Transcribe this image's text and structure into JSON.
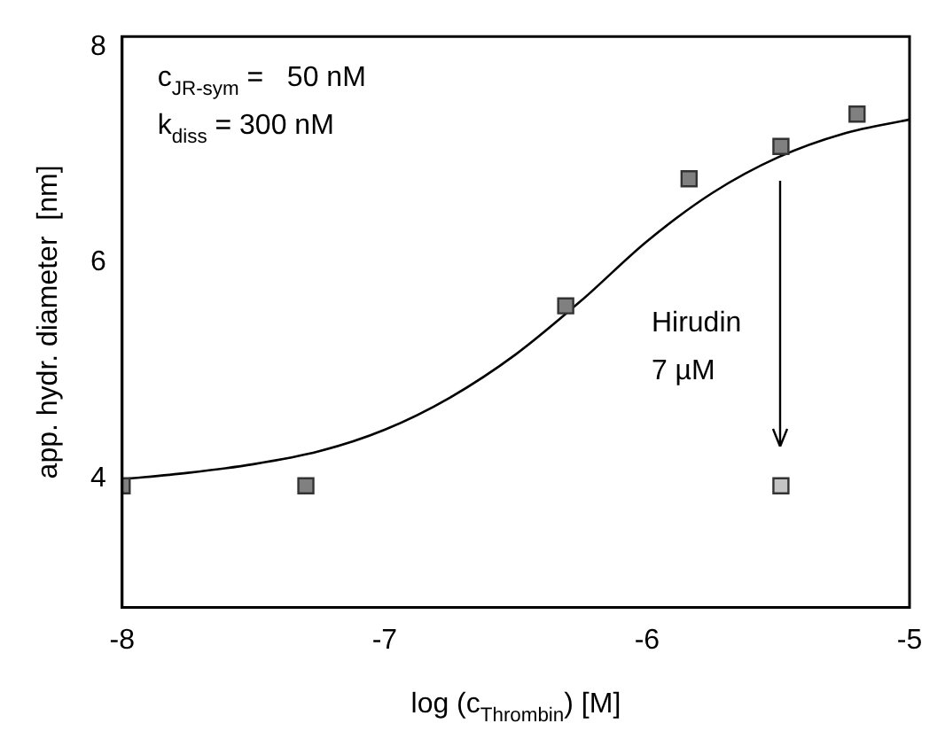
{
  "chart_data": {
    "type": "scatter",
    "xlabel": "log (c$_{Thrombin}$) [M]",
    "ylabel": "app. hydr. diameter  [nm]",
    "xlim": [
      -8,
      -5
    ],
    "xticks": [
      -8,
      -7,
      -6,
      -5
    ],
    "ylim": [
      2.8,
      8.1
    ],
    "yticks": [
      4,
      6,
      8
    ],
    "marker": "square",
    "legend": false,
    "series": [
      {
        "color": "#808080",
        "x": [
          -8,
          -7.3,
          -6.31,
          -5.84,
          -5.49,
          -5.2
        ],
        "values": [
          3.93,
          3.93,
          5.6,
          6.78,
          7.08,
          7.38
        ]
      },
      {
        "color": "#c4c4c4",
        "x": [
          -5.49
        ],
        "values": [
          3.93
        ]
      },
      {
        "type": "line",
        "color": "#000000",
        "marker": "none",
        "line_style": "solid",
        "x": [
          -8,
          -7.75,
          -7.5,
          -7.25,
          -7,
          -6.75,
          -6.5,
          -6.25,
          -6,
          -5.75,
          -5.5,
          -5.25,
          -5
        ],
        "values": [
          3.99,
          4.05,
          4.13,
          4.25,
          4.45,
          4.75,
          5.15,
          5.65,
          6.2,
          6.65,
          6.98,
          7.2,
          7.33
        ]
      }
    ],
    "annotations": [
      "c$_{JR-sym}$ =   50 nM",
      "k$_{diss}$ = 300 nM",
      "Hirudin 7 µM"
    ]
  }
}
